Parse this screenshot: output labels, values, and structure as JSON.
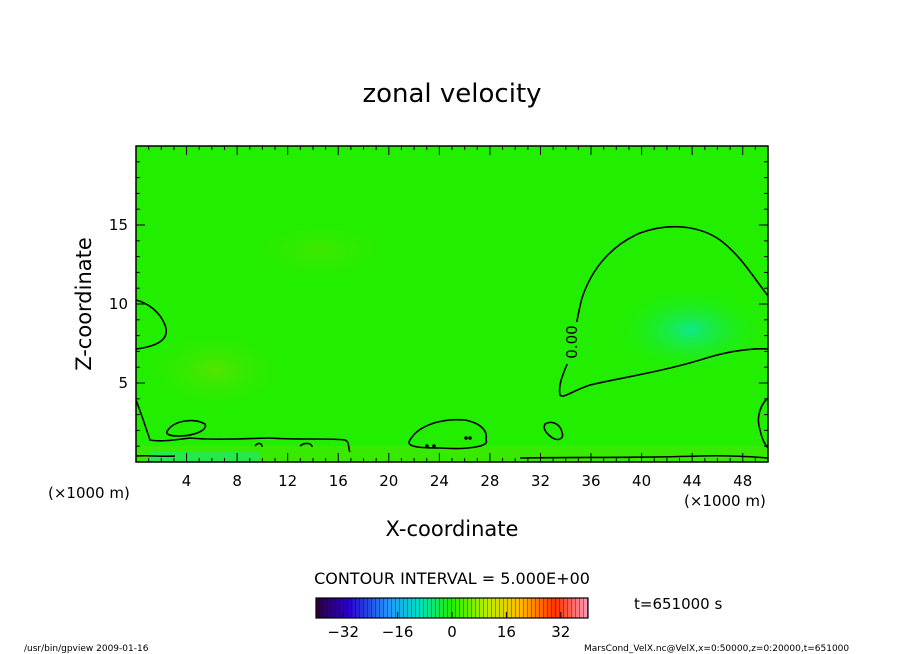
{
  "chart_data": {
    "type": "heatmap",
    "title": "zonal velocity",
    "xlabel": "X-coordinate",
    "ylabel": "Z-coordinate",
    "x_unit_left": "(×1000 m)",
    "x_unit_right": "(×1000 m)",
    "xlim": [
      0,
      50
    ],
    "ylim": [
      0,
      20
    ],
    "x_ticks": [
      4,
      8,
      12,
      16,
      20,
      24,
      28,
      32,
      36,
      40,
      44,
      48
    ],
    "y_ticks": [
      5,
      10,
      15
    ],
    "contour_label": "0.00",
    "contour_interval_text": "CONTOUR INTERVAL = 5.000E+00",
    "time_text": "t=651000 s",
    "colorbar": {
      "range": [
        -40,
        40
      ],
      "ticks": [
        -32,
        -16,
        0,
        16,
        32
      ]
    },
    "colors": {
      "field": "#22ee00",
      "positive_region": "#2ce600",
      "negative_region": "#00e870"
    }
  },
  "footer": {
    "left": "/usr/bin/gpview  2009-01-16",
    "right": "MarsCond_VelX.nc@VelX,x=0:50000,z=0:20000,t=651000"
  }
}
